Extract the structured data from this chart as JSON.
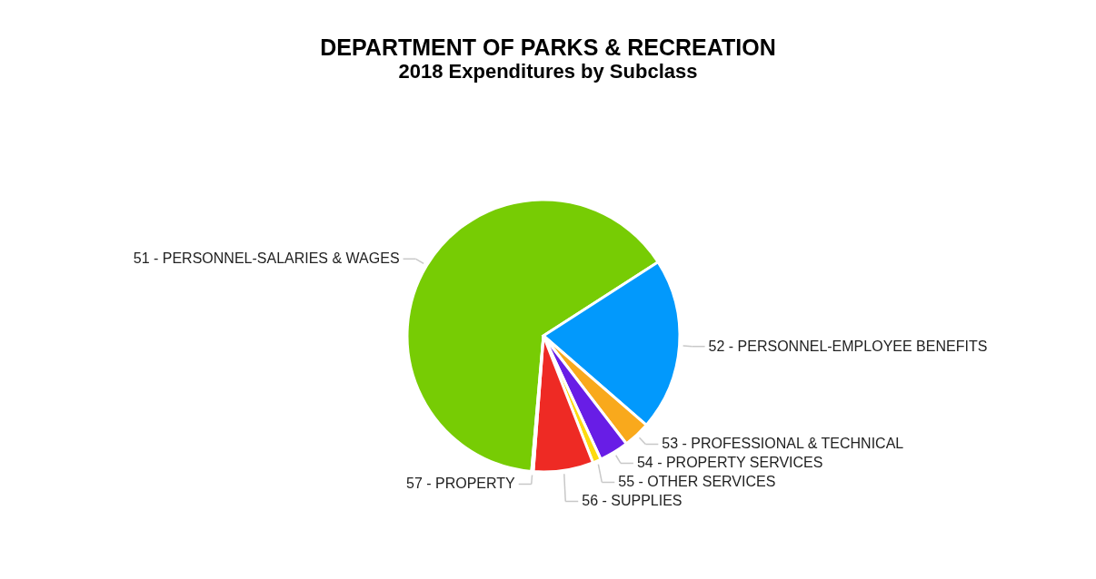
{
  "chart_data": {
    "type": "pie",
    "title": "DEPARTMENT OF PARKS & RECREATION",
    "subtitle": "2018 Expenditures by Subclass",
    "categories": [
      "51 - PERSONNEL-SALARIES & WAGES",
      "52 - PERSONNEL-EMPLOYEE BENEFITS",
      "53 - PROFESSIONAL & TECHNICAL",
      "54 - PROPERTY SERVICES",
      "55 - OTHER SERVICES",
      "56 - SUPPLIES",
      "57 - PROPERTY"
    ],
    "values": [
      64.5,
      20.5,
      3.2,
      3.5,
      1.0,
      7.1,
      0.2
    ],
    "colors": [
      "#77cc04",
      "#0299fc",
      "#f9a91c",
      "#681de6",
      "#fddb0f",
      "#ee2a24",
      "#9e9e9e"
    ],
    "legend": false
  }
}
